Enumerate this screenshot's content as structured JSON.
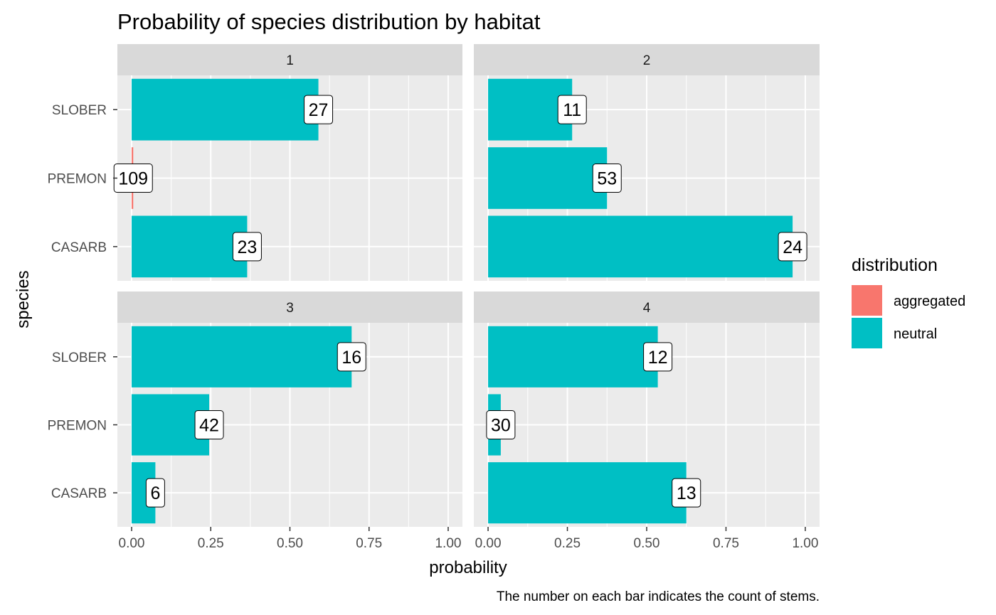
{
  "chart_data": {
    "type": "bar",
    "orientation": "horizontal",
    "title": "Probability of species distribution by habitat",
    "caption": "The number on each bar indicates the count of stems.",
    "xlabel": "probability",
    "ylabel": "species",
    "xlim": [
      0,
      1
    ],
    "x_ticks": [
      "0.00",
      "0.25",
      "0.50",
      "0.75",
      "1.00"
    ],
    "x_tick_values": [
      0,
      0.25,
      0.5,
      0.75,
      1
    ],
    "categories": [
      "SLOBER",
      "PREMON",
      "CASARB"
    ],
    "grid": true,
    "legend": {
      "title": "distribution",
      "placement": "right",
      "items": [
        {
          "label": "aggregated",
          "color": "#F8766D"
        },
        {
          "label": "neutral",
          "color": "#00BFC4"
        }
      ]
    },
    "facets": [
      {
        "label": "1",
        "bars": [
          {
            "species": "SLOBER",
            "value": 0.59,
            "count": "27",
            "distribution": "neutral"
          },
          {
            "species": "PREMON",
            "value": 0.005,
            "count": "109",
            "distribution": "aggregated"
          },
          {
            "species": "CASARB",
            "value": 0.365,
            "count": "23",
            "distribution": "neutral"
          }
        ]
      },
      {
        "label": "2",
        "bars": [
          {
            "species": "SLOBER",
            "value": 0.265,
            "count": "11",
            "distribution": "neutral"
          },
          {
            "species": "PREMON",
            "value": 0.375,
            "count": "53",
            "distribution": "neutral"
          },
          {
            "species": "CASARB",
            "value": 0.96,
            "count": "24",
            "distribution": "neutral"
          }
        ]
      },
      {
        "label": "3",
        "bars": [
          {
            "species": "SLOBER",
            "value": 0.695,
            "count": "16",
            "distribution": "neutral"
          },
          {
            "species": "PREMON",
            "value": 0.245,
            "count": "42",
            "distribution": "neutral"
          },
          {
            "species": "CASARB",
            "value": 0.075,
            "count": "6",
            "distribution": "neutral"
          }
        ]
      },
      {
        "label": "4",
        "bars": [
          {
            "species": "SLOBER",
            "value": 0.535,
            "count": "12",
            "distribution": "neutral"
          },
          {
            "species": "PREMON",
            "value": 0.04,
            "count": "30",
            "distribution": "neutral"
          },
          {
            "species": "CASARB",
            "value": 0.625,
            "count": "13",
            "distribution": "neutral"
          }
        ]
      }
    ]
  }
}
